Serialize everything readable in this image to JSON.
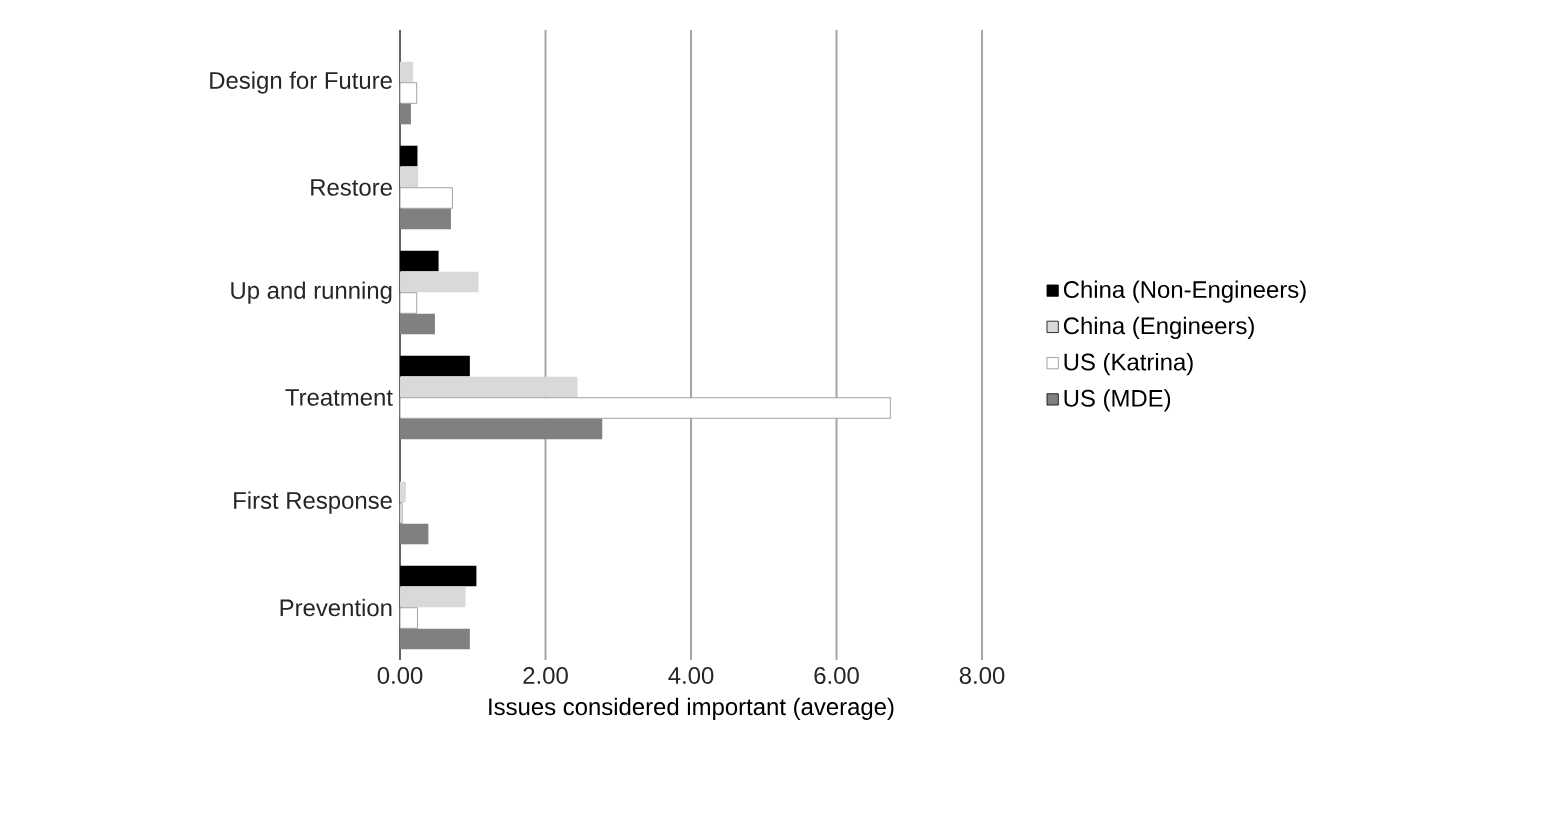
{
  "chart_data": {
    "type": "bar",
    "orientation": "horizontal",
    "xlabel": "Issues considered important (average)",
    "categories": [
      "Design for Future",
      "Restore",
      "Up and running",
      "Treatment",
      "First Response",
      "Prevention"
    ],
    "series": [
      {
        "name": "China (Non-Engineers)",
        "color": "#000000",
        "values": [
          0,
          0.24,
          0.53,
          0.96,
          0,
          1.05
        ]
      },
      {
        "name": "China (Engineers)",
        "color": "#d9d9d9",
        "values": [
          0.18,
          0.25,
          1.08,
          2.44,
          0.08,
          0.9
        ]
      },
      {
        "name": "US (Katrina)",
        "color": "#ffffff",
        "values": [
          0.23,
          0.72,
          0.23,
          6.74,
          0.03,
          0.24
        ]
      },
      {
        "name": "US (MDE)",
        "color": "#808080",
        "values": [
          0.15,
          0.7,
          0.48,
          2.78,
          0.39,
          0.96
        ]
      }
    ],
    "xlim": [
      0,
      8
    ],
    "xticks": [
      {
        "value": 0,
        "label": "0.00"
      },
      {
        "value": 2,
        "label": "2.00"
      },
      {
        "value": 4,
        "label": "4.00"
      },
      {
        "value": 6,
        "label": "6.00"
      },
      {
        "value": 8,
        "label": "8.00"
      }
    ],
    "grid": "x",
    "legend": "right"
  }
}
